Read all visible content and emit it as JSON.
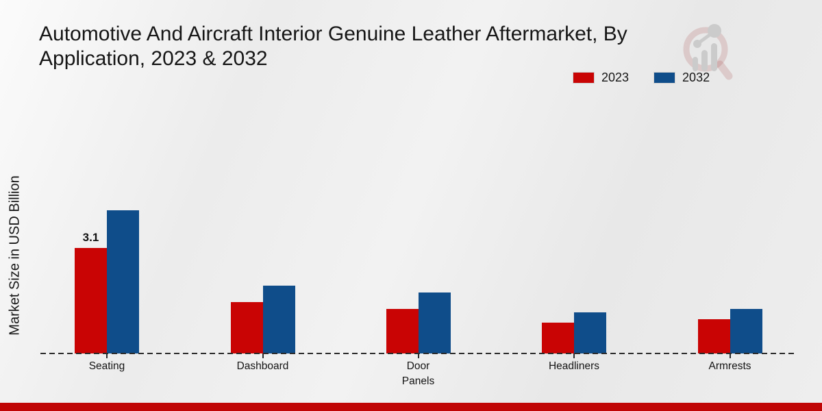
{
  "header": {
    "title_line1": "Automotive And Aircraft Interior Genuine Leather Aftermarket, By",
    "title_line2": "Application, 2023 & 2032"
  },
  "branding": {
    "logo": "market-research-future-watermark"
  },
  "chart_data": {
    "type": "bar",
    "title": "Automotive And Aircraft Interior Genuine Leather Aftermarket, By Application, 2023 & 2032",
    "xlabel": "",
    "ylabel": "Market Size in USD Billion",
    "unit": "USD Billion",
    "categories": [
      "Seating",
      "Dashboard",
      "Door Panels",
      "Headliners",
      "Armrests"
    ],
    "tick_labels": [
      "Seating",
      "Dashboard",
      "Door\nPanels",
      "Headliners",
      "Armrests"
    ],
    "series": [
      {
        "name": "2023",
        "color": "#c90404",
        "values": [
          3.1,
          1.5,
          1.3,
          0.9,
          1.0
        ],
        "value_labels": [
          "3.1",
          "",
          "",
          "",
          ""
        ]
      },
      {
        "name": "2032",
        "color": "#0f4d8a",
        "values": [
          4.2,
          2.0,
          1.8,
          1.2,
          1.3
        ],
        "value_labels": [
          "",
          "",
          "",
          "",
          ""
        ]
      }
    ],
    "grid": false,
    "legend_position": "top-right",
    "baseline_style": "dashed",
    "ylim": [
      0,
      4.6
    ]
  },
  "footer": {
    "bar_color": "#c00505"
  }
}
